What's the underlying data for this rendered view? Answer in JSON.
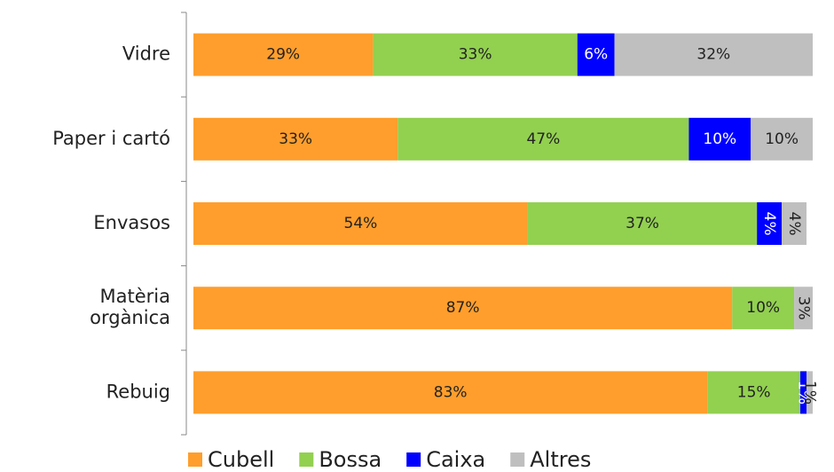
{
  "chart_data": {
    "type": "stacked-bar-horizontal",
    "categories": [
      "Vidre",
      "Paper i cartó",
      "Envasos",
      "Matèria orgànica",
      "Rebuig"
    ],
    "series": [
      {
        "name": "Cubell",
        "color": "#ff9e2c",
        "values": [
          29,
          33,
          54,
          87,
          83
        ],
        "value_labels": [
          "29%",
          "33%",
          "54%",
          "87%",
          "83%"
        ]
      },
      {
        "name": "Bossa",
        "color": "#92d050",
        "values": [
          33,
          47,
          37,
          10,
          15
        ],
        "value_labels": [
          "33%",
          "47%",
          "37%",
          "10%",
          "15%"
        ]
      },
      {
        "name": "Caixa",
        "color": "#0000ff",
        "values": [
          6,
          10,
          4,
          0,
          1
        ],
        "value_labels": [
          "6%",
          "10%",
          "4%",
          null,
          "1%"
        ]
      },
      {
        "name": "Altres",
        "color": "#bfbfbf",
        "values": [
          32,
          10,
          4,
          3,
          1
        ],
        "value_labels": [
          "32%",
          "10%",
          "4%",
          "3%",
          "1%"
        ]
      }
    ],
    "xlim": [
      0,
      100
    ],
    "legend": "bottom"
  }
}
